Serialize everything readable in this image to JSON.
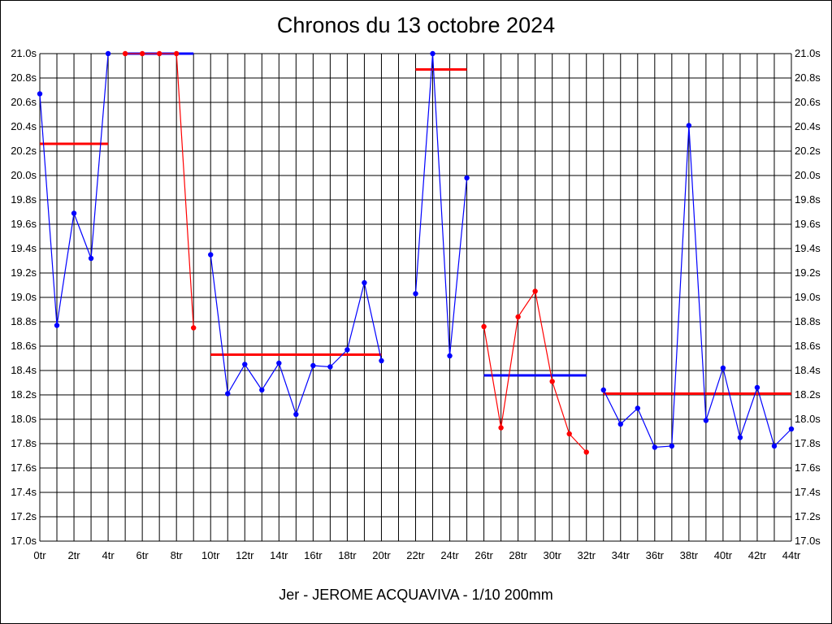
{
  "title": "Chronos du 13 octobre 2024",
  "caption": "Jer - JEROME ACQUAVIVA - 1/10 200mm",
  "chart_data": {
    "type": "line",
    "title": "Chronos du 13 octobre 2024",
    "xlabel": "",
    "ylabel": "",
    "xlim": [
      0,
      44
    ],
    "ylim": [
      17.0,
      21.0
    ],
    "x_tick_step": 2,
    "x_tick_suffix": "tr",
    "y_tick_step": 0.2,
    "y_tick_suffix": "s",
    "y_axis_both_sides": true,
    "grid": true,
    "legend": "none",
    "series": [
      {
        "color": "#0000ff",
        "points": [
          [
            0,
            20.67
          ],
          [
            1,
            18.77
          ],
          [
            2,
            19.69
          ],
          [
            3,
            19.32
          ],
          [
            4,
            21.0
          ]
        ]
      },
      {
        "color": "#ff0000",
        "points": [
          [
            5,
            21.0
          ],
          [
            6,
            21.0
          ],
          [
            7,
            21.0
          ],
          [
            8,
            21.0
          ],
          [
            9,
            18.75
          ]
        ]
      },
      {
        "color": "#0000ff",
        "points": [
          [
            10,
            19.35
          ],
          [
            11,
            18.21
          ],
          [
            12,
            18.45
          ],
          [
            13,
            18.24
          ],
          [
            14,
            18.46
          ],
          [
            15,
            18.04
          ],
          [
            16,
            18.44
          ],
          [
            17,
            18.43
          ],
          [
            18,
            18.57
          ],
          [
            19,
            19.12
          ],
          [
            20,
            18.48
          ]
        ]
      },
      {
        "color": "#0000ff",
        "points": [
          [
            22,
            19.03
          ],
          [
            23,
            21.0
          ],
          [
            24,
            18.52
          ],
          [
            25,
            19.98
          ]
        ]
      },
      {
        "color": "#ff0000",
        "points": [
          [
            26,
            18.76
          ],
          [
            27,
            17.93
          ],
          [
            28,
            18.84
          ],
          [
            29,
            19.05
          ],
          [
            30,
            18.31
          ],
          [
            31,
            17.88
          ],
          [
            32,
            17.73
          ]
        ]
      },
      {
        "color": "#0000ff",
        "points": [
          [
            33,
            18.24
          ],
          [
            34,
            17.96
          ],
          [
            35,
            18.09
          ],
          [
            36,
            17.77
          ],
          [
            37,
            17.78
          ],
          [
            38,
            20.41
          ],
          [
            39,
            17.99
          ],
          [
            40,
            18.42
          ],
          [
            41,
            17.85
          ],
          [
            42,
            18.26
          ],
          [
            43,
            17.78
          ],
          [
            44,
            17.92
          ]
        ]
      }
    ],
    "averages": [
      {
        "color": "#ff0000",
        "x": [
          0,
          4
        ],
        "y": 20.26
      },
      {
        "color": "#0000ff",
        "x": [
          5,
          9
        ],
        "y": 21.0
      },
      {
        "color": "#ff0000",
        "x": [
          10,
          20
        ],
        "y": 18.53
      },
      {
        "color": "#ff0000",
        "x": [
          22,
          25
        ],
        "y": 20.87
      },
      {
        "color": "#0000ff",
        "x": [
          26,
          32
        ],
        "y": 18.36
      },
      {
        "color": "#ff0000",
        "x": [
          33,
          44
        ],
        "y": 18.21
      }
    ]
  }
}
